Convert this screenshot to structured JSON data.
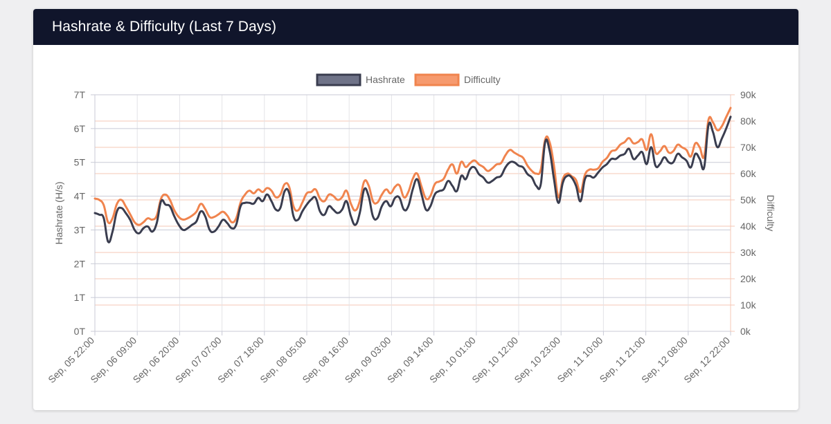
{
  "header": {
    "title": "Hashrate & Difficulty (Last 7 Days)"
  },
  "colors": {
    "hashrate_line": "#3a3d4f",
    "hashrate_fill": "#6f7388",
    "difficulty_line": "#f0844e",
    "difficulty_fill": "#f69a6e",
    "left_grid": "#c8cad6",
    "right_grid": "#f6c7b4",
    "vertical_grid": "#e3e3e7",
    "axis_text": "#666666",
    "header_bg": "#10152b"
  },
  "chart_data": {
    "type": "line",
    "legend_position": "top-center",
    "grid": true,
    "y_left": {
      "label": "Hashrate (H/s)",
      "min": 0,
      "max": 7000000000000,
      "tick_labels": [
        "0T",
        "1T",
        "2T",
        "3T",
        "4T",
        "5T",
        "6T",
        "7T"
      ]
    },
    "y_right": {
      "label": "Difficulty",
      "min": 0,
      "max": 90000,
      "tick_labels": [
        "0k",
        "10k",
        "20k",
        "30k",
        "40k",
        "50k",
        "60k",
        "70k",
        "80k",
        "90k"
      ]
    },
    "x_tick_labels": [
      "Sep, 05 22:00",
      "Sep, 06 09:00",
      "Sep, 06 20:00",
      "Sep, 07 07:00",
      "Sep, 07 18:00",
      "Sep, 08 05:00",
      "Sep, 08 16:00",
      "Sep, 09 03:00",
      "Sep, 09 14:00",
      "Sep, 10 01:00",
      "Sep, 10 12:00",
      "Sep, 10 23:00",
      "Sep, 11 10:00",
      "Sep, 11 21:00",
      "Sep, 12 08:00",
      "Sep, 12 22:00"
    ],
    "series": [
      {
        "name": "Hashrate",
        "axis": "left",
        "unit": "T",
        "values": [
          3.5,
          3.45,
          3.35,
          2.65,
          2.95,
          3.55,
          3.65,
          3.5,
          3.3,
          3.0,
          2.9,
          3.05,
          3.1,
          2.95,
          3.2,
          3.85,
          3.75,
          3.7,
          3.4,
          3.15,
          3.0,
          3.05,
          3.15,
          3.25,
          3.55,
          3.4,
          3.0,
          2.95,
          3.1,
          3.3,
          3.2,
          3.05,
          3.15,
          3.7,
          3.8,
          3.8,
          3.78,
          3.95,
          3.85,
          4.05,
          3.85,
          3.6,
          3.65,
          4.15,
          4.1,
          3.4,
          3.3,
          3.55,
          3.75,
          3.9,
          3.95,
          3.55,
          3.45,
          3.7,
          3.6,
          3.5,
          3.6,
          3.85,
          3.4,
          3.15,
          3.5,
          4.2,
          4.0,
          3.4,
          3.35,
          3.7,
          3.85,
          3.7,
          3.95,
          3.95,
          3.6,
          3.7,
          4.2,
          4.5,
          4.05,
          3.6,
          3.7,
          4.05,
          4.15,
          4.2,
          4.45,
          4.3,
          4.15,
          4.6,
          4.5,
          4.8,
          4.85,
          4.65,
          4.55,
          4.4,
          4.45,
          4.55,
          4.6,
          4.85,
          5.0,
          5.0,
          4.9,
          4.85,
          4.65,
          4.55,
          4.3,
          4.35,
          5.6,
          5.35,
          4.5,
          3.8,
          4.4,
          4.6,
          4.55,
          4.3,
          3.85,
          4.5,
          4.6,
          4.55,
          4.7,
          4.85,
          4.95,
          5.1,
          5.1,
          5.2,
          5.25,
          5.4,
          5.1,
          5.2,
          5.3,
          4.95,
          5.45,
          4.9,
          4.95,
          5.15,
          5.0,
          5.0,
          5.25,
          5.15,
          5.05,
          4.85,
          5.25,
          5.1,
          4.85,
          6.1,
          5.9,
          5.45,
          5.7,
          6.0,
          6.35
        ]
      },
      {
        "name": "Difficulty",
        "axis": "right",
        "unit": "k",
        "values": [
          50.5,
          50,
          48,
          41.5,
          43,
          48.5,
          50,
          47.5,
          44.5,
          41.5,
          40.5,
          41.5,
          43,
          42.5,
          44,
          50.5,
          52,
          50,
          46,
          43.5,
          42.5,
          43,
          44,
          45.5,
          48.5,
          46.5,
          43.5,
          43.5,
          44.5,
          45.5,
          44,
          41.5,
          43,
          49,
          52,
          53.5,
          52.5,
          54,
          53,
          54.5,
          53.5,
          51,
          52,
          56,
          55,
          47.5,
          46,
          49,
          52.5,
          53,
          54,
          50.5,
          49.5,
          52,
          51.5,
          50,
          51,
          53.5,
          48.5,
          46,
          49.5,
          57,
          55.5,
          49.5,
          49,
          52,
          54,
          52.5,
          55,
          55.5,
          51,
          53,
          58,
          60,
          55,
          50.5,
          51.5,
          56,
          57,
          58,
          61.5,
          63.5,
          60,
          64.5,
          62.5,
          64,
          65,
          63.5,
          62.5,
          61,
          62,
          63.5,
          64,
          67,
          69,
          68,
          67,
          66,
          63,
          61,
          60,
          61.5,
          73,
          72,
          63,
          51,
          58,
          60,
          59,
          57.5,
          53,
          59.5,
          61.5,
          61.5,
          62,
          64.5,
          66,
          68.5,
          69,
          71,
          72,
          73.5,
          71.5,
          72,
          73,
          69,
          75,
          68,
          68.5,
          70.5,
          68,
          68.5,
          71,
          70,
          69,
          66.5,
          71.5,
          70,
          66.5,
          80.5,
          79.5,
          76.5,
          78,
          81.5,
          85
        ]
      }
    ]
  }
}
